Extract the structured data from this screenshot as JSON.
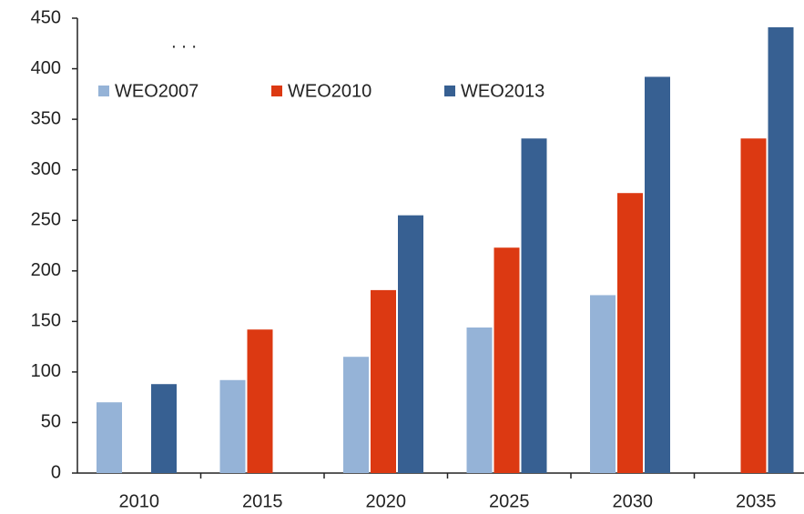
{
  "chart_data": {
    "type": "bar",
    "annotation": ". . .",
    "categories": [
      "2010",
      "2015",
      "2020",
      "2025",
      "2030",
      "2035"
    ],
    "series": [
      {
        "name": "WEO2007",
        "color": "#95b3d7",
        "values": [
          70,
          92,
          115,
          144,
          176,
          null
        ]
      },
      {
        "name": "WEO2010",
        "color": "#dc3912",
        "values": [
          null,
          142,
          181,
          223,
          277,
          331
        ]
      },
      {
        "name": "WEO2013",
        "color": "#376092",
        "values": [
          88,
          null,
          255,
          331,
          392,
          441
        ]
      }
    ],
    "ylim": [
      0,
      450
    ],
    "yticks": [
      0,
      50,
      100,
      150,
      200,
      250,
      300,
      350,
      400,
      450
    ],
    "grid": false,
    "legend": "top-left"
  }
}
